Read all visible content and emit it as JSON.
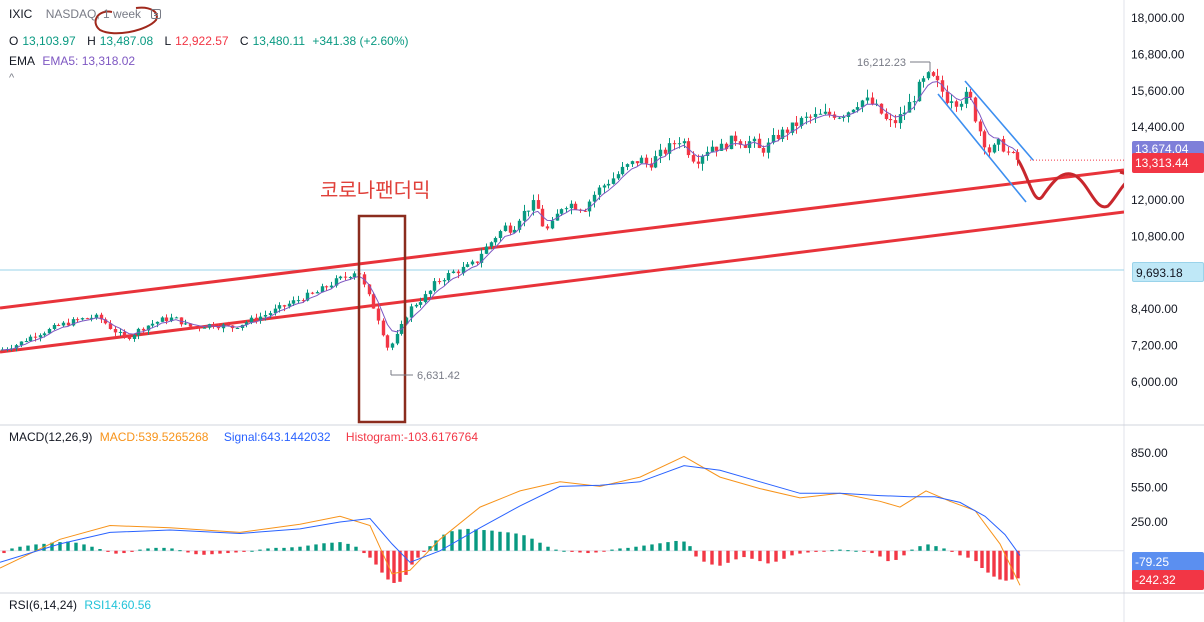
{
  "header": {
    "symbol": "IXIC",
    "exchange_interval": "NASDAQ, 1 week",
    "ohlc": {
      "o_label": "O",
      "o": "13,103.97",
      "h_label": "H",
      "h": "13,487.08",
      "l_label": "L",
      "l": "12,922.57",
      "c_label": "C",
      "c": "13,480.11",
      "change": "+341.38 (+2.60%)"
    },
    "ema_label": "EMA",
    "ema_value": "EMA5: 13,318.02"
  },
  "macd_header": {
    "label": "MACD(12,26,9)",
    "macd": "MACD:539.5265268",
    "signal": "Signal:643.1442032",
    "histogram": "Histogram:-103.6176764"
  },
  "rsi_header": {
    "label": "RSI(6,14,24)",
    "rsi": "RSI14:60.56"
  },
  "price_labels": {
    "ema_box": "13,674.04",
    "last_price": "13,313.44",
    "crosshair_price": "9,693.18",
    "macd_signal_box": "-79.25",
    "macd_hist_box": "-242.32"
  },
  "annotations": {
    "covid_text": "코로나팬더믹",
    "high_label": "16,212.23",
    "low_label": "6,631.42"
  },
  "colors": {
    "up": "#089981",
    "down": "#f23645",
    "ema": "#7e57c2",
    "channel": "#e8333a",
    "wedge": "#3d8ff0",
    "box": "#8b2c1e",
    "forecast": "#c8272d",
    "macd": "#f7931a",
    "signal": "#2962ff"
  },
  "chart_data": [
    {
      "type": "candlestick",
      "title": "IXIC NASDAQ, 1 week",
      "y_axis_ticks": [
        18000,
        16800,
        15600,
        14400,
        13200,
        12000,
        10800,
        9600,
        8400,
        7200,
        6000
      ],
      "y_tick_labels": [
        "18,000.00",
        "16,800.00",
        "15,600.00",
        "14,400.00",
        "",
        "12,000.00",
        "10,800.00",
        "",
        "8,400.00",
        "7,200.00",
        "6,000.00"
      ],
      "ylim": [
        4900,
        18500
      ],
      "path_points": [
        [
          0,
          7050
        ],
        [
          8,
          7150
        ],
        [
          18,
          7250
        ],
        [
          28,
          7450
        ],
        [
          38,
          7600
        ],
        [
          48,
          7700
        ],
        [
          58,
          7850
        ],
        [
          68,
          7950
        ],
        [
          78,
          8050
        ],
        [
          86,
          8100
        ],
        [
          94,
          8150
        ],
        [
          102,
          8050
        ],
        [
          110,
          7800
        ],
        [
          118,
          7600
        ],
        [
          124,
          7450
        ],
        [
          130,
          7520
        ],
        [
          138,
          7700
        ],
        [
          146,
          7850
        ],
        [
          154,
          7950
        ],
        [
          162,
          8050
        ],
        [
          170,
          8100
        ],
        [
          178,
          8050
        ],
        [
          186,
          7850
        ],
        [
          194,
          7800
        ],
        [
          202,
          7850
        ],
        [
          212,
          7900
        ],
        [
          222,
          7850
        ],
        [
          232,
          7800
        ],
        [
          240,
          7900
        ],
        [
          248,
          8000
        ],
        [
          256,
          8100
        ],
        [
          264,
          8200
        ],
        [
          274,
          8350
        ],
        [
          284,
          8500
        ],
        [
          294,
          8650
        ],
        [
          304,
          8800
        ],
        [
          314,
          8900
        ],
        [
          324,
          9100
        ],
        [
          334,
          9300
        ],
        [
          344,
          9450
        ],
        [
          352,
          9600
        ],
        [
          358,
          9700
        ],
        [
          364,
          9150
        ],
        [
          370,
          8700
        ],
        [
          376,
          8300
        ],
        [
          382,
          7700
        ],
        [
          388,
          7100
        ],
        [
          394,
          7350
        ],
        [
          400,
          7700
        ],
        [
          406,
          8200
        ],
        [
          412,
          8500
        ],
        [
          418,
          8650
        ],
        [
          424,
          8800
        ],
        [
          430,
          9000
        ],
        [
          436,
          9300
        ],
        [
          444,
          9450
        ],
        [
          452,
          9600
        ],
        [
          460,
          9700
        ],
        [
          468,
          9800
        ],
        [
          476,
          9950
        ],
        [
          482,
          10300
        ],
        [
          488,
          10500
        ],
        [
          494,
          10750
        ],
        [
          500,
          10950
        ],
        [
          506,
          11150
        ],
        [
          512,
          11000
        ],
        [
          518,
          11400
        ],
        [
          524,
          11600
        ],
        [
          530,
          11800
        ],
        [
          536,
          11900
        ],
        [
          542,
          11200
        ],
        [
          548,
          11000
        ],
        [
          554,
          11300
        ],
        [
          560,
          11750
        ],
        [
          568,
          11900
        ],
        [
          576,
          11800
        ],
        [
          584,
          11700
        ],
        [
          592,
          12100
        ],
        [
          600,
          12400
        ],
        [
          608,
          12600
        ],
        [
          616,
          12800
        ],
        [
          624,
          13050
        ],
        [
          632,
          13200
        ],
        [
          640,
          13350
        ],
        [
          648,
          13150
        ],
        [
          656,
          13400
        ],
        [
          664,
          13600
        ],
        [
          672,
          13800
        ],
        [
          678,
          14000
        ],
        [
          684,
          13900
        ],
        [
          690,
          13500
        ],
        [
          696,
          13300
        ],
        [
          704,
          13600
        ],
        [
          712,
          13800
        ],
        [
          720,
          13700
        ],
        [
          728,
          13900
        ],
        [
          736,
          14050
        ],
        [
          744,
          13850
        ],
        [
          752,
          13950
        ],
        [
          760,
          13600
        ],
        [
          768,
          13800
        ],
        [
          776,
          14100
        ],
        [
          784,
          14250
        ],
        [
          792,
          14400
        ],
        [
          800,
          14600
        ],
        [
          808,
          14700
        ],
        [
          816,
          14750
        ],
        [
          824,
          14800
        ],
        [
          832,
          14850
        ],
        [
          840,
          14800
        ],
        [
          848,
          14950
        ],
        [
          856,
          15200
        ],
        [
          864,
          15300
        ],
        [
          872,
          15150
        ],
        [
          880,
          14900
        ],
        [
          888,
          14500
        ],
        [
          896,
          14600
        ],
        [
          904,
          14900
        ],
        [
          912,
          15300
        ],
        [
          920,
          15800
        ],
        [
          928,
          16050
        ],
        [
          934,
          15950
        ],
        [
          940,
          15700
        ],
        [
          946,
          15350
        ],
        [
          952,
          15400
        ],
        [
          958,
          15200
        ],
        [
          964,
          15450
        ],
        [
          970,
          15300
        ],
        [
          976,
          14600
        ],
        [
          982,
          14100
        ],
        [
          988,
          13600
        ],
        [
          994,
          13700
        ],
        [
          1000,
          13900
        ],
        [
          1006,
          13600
        ],
        [
          1012,
          13450
        ],
        [
          1018,
          13300
        ]
      ],
      "high": 16212.23,
      "low": 6631.42,
      "last": 13313.44,
      "crosshair": 9693.18
    },
    {
      "type": "line",
      "title": "MACD(12,26,9)",
      "y_axis_ticks": [
        850,
        550,
        250
      ],
      "y_tick_labels": [
        "850.00",
        "550.00",
        "250.00"
      ],
      "ylim": [
        -350,
        1000
      ],
      "series": [
        {
          "name": "MACD",
          "points": [
            [
              0,
              -150
            ],
            [
              60,
              100
            ],
            [
              110,
              220
            ],
            [
              170,
              200
            ],
            [
              240,
              160
            ],
            [
              300,
              230
            ],
            [
              340,
              300
            ],
            [
              370,
              220
            ],
            [
              392,
              -200
            ],
            [
              410,
              -170
            ],
            [
              440,
              100
            ],
            [
              480,
              380
            ],
            [
              520,
              520
            ],
            [
              560,
              600
            ],
            [
              600,
              560
            ],
            [
              640,
              640
            ],
            [
              684,
              820
            ],
            [
              720,
              640
            ],
            [
              760,
              540
            ],
            [
              800,
              460
            ],
            [
              840,
              500
            ],
            [
              880,
              430
            ],
            [
              900,
              380
            ],
            [
              926,
              520
            ],
            [
              950,
              430
            ],
            [
              975,
              350
            ],
            [
              1000,
              60
            ],
            [
              1020,
              -300
            ]
          ]
        },
        {
          "name": "Signal",
          "points": [
            [
              0,
              -100
            ],
            [
              60,
              60
            ],
            [
              110,
              160
            ],
            [
              170,
              180
            ],
            [
              240,
              150
            ],
            [
              300,
              190
            ],
            [
              340,
              250
            ],
            [
              370,
              280
            ],
            [
              392,
              60
            ],
            [
              410,
              -100
            ],
            [
              440,
              0
            ],
            [
              480,
              200
            ],
            [
              520,
              390
            ],
            [
              560,
              560
            ],
            [
              600,
              570
            ],
            [
              640,
              600
            ],
            [
              684,
              740
            ],
            [
              720,
              700
            ],
            [
              760,
              600
            ],
            [
              800,
              500
            ],
            [
              840,
              500
            ],
            [
              880,
              480
            ],
            [
              910,
              470
            ],
            [
              935,
              470
            ],
            [
              960,
              420
            ],
            [
              985,
              300
            ],
            [
              1005,
              140
            ],
            [
              1020,
              -40
            ]
          ]
        }
      ],
      "histogram": [
        [
          4,
          -20
        ],
        [
          12,
          20
        ],
        [
          20,
          35
        ],
        [
          28,
          45
        ],
        [
          36,
          55
        ],
        [
          44,
          60
        ],
        [
          52,
          70
        ],
        [
          60,
          75
        ],
        [
          68,
          80
        ],
        [
          76,
          70
        ],
        [
          84,
          55
        ],
        [
          92,
          35
        ],
        [
          100,
          15
        ],
        [
          108,
          -10
        ],
        [
          116,
          -25
        ],
        [
          124,
          -20
        ],
        [
          132,
          -10
        ],
        [
          140,
          10
        ],
        [
          148,
          20
        ],
        [
          156,
          25
        ],
        [
          164,
          25
        ],
        [
          172,
          20
        ],
        [
          180,
          5
        ],
        [
          188,
          -15
        ],
        [
          196,
          -30
        ],
        [
          204,
          -35
        ],
        [
          212,
          -30
        ],
        [
          220,
          -25
        ],
        [
          228,
          -20
        ],
        [
          236,
          -15
        ],
        [
          244,
          -10
        ],
        [
          252,
          0
        ],
        [
          260,
          10
        ],
        [
          268,
          20
        ],
        [
          276,
          25
        ],
        [
          284,
          25
        ],
        [
          292,
          30
        ],
        [
          300,
          35
        ],
        [
          308,
          45
        ],
        [
          316,
          55
        ],
        [
          324,
          65
        ],
        [
          332,
          70
        ],
        [
          340,
          75
        ],
        [
          348,
          60
        ],
        [
          356,
          35
        ],
        [
          364,
          -20
        ],
        [
          370,
          -60
        ],
        [
          376,
          -120
        ],
        [
          382,
          -190
        ],
        [
          388,
          -250
        ],
        [
          394,
          -280
        ],
        [
          400,
          -270
        ],
        [
          406,
          -210
        ],
        [
          412,
          -120
        ],
        [
          418,
          -60
        ],
        [
          424,
          -10
        ],
        [
          430,
          40
        ],
        [
          436,
          90
        ],
        [
          444,
          140
        ],
        [
          452,
          170
        ],
        [
          460,
          185
        ],
        [
          468,
          190
        ],
        [
          476,
          185
        ],
        [
          484,
          180
        ],
        [
          492,
          175
        ],
        [
          500,
          165
        ],
        [
          508,
          160
        ],
        [
          516,
          150
        ],
        [
          524,
          135
        ],
        [
          532,
          105
        ],
        [
          540,
          70
        ],
        [
          548,
          35
        ],
        [
          556,
          10
        ],
        [
          564,
          0
        ],
        [
          572,
          -10
        ],
        [
          580,
          -15
        ],
        [
          588,
          -20
        ],
        [
          596,
          -15
        ],
        [
          604,
          -5
        ],
        [
          612,
          10
        ],
        [
          620,
          20
        ],
        [
          628,
          25
        ],
        [
          636,
          35
        ],
        [
          644,
          45
        ],
        [
          652,
          55
        ],
        [
          660,
          65
        ],
        [
          668,
          75
        ],
        [
          676,
          85
        ],
        [
          684,
          80
        ],
        [
          690,
          40
        ],
        [
          696,
          -50
        ],
        [
          704,
          -95
        ],
        [
          712,
          -120
        ],
        [
          720,
          -130
        ],
        [
          728,
          -105
        ],
        [
          736,
          -75
        ],
        [
          744,
          -55
        ],
        [
          752,
          -70
        ],
        [
          760,
          -90
        ],
        [
          768,
          -110
        ],
        [
          776,
          -95
        ],
        [
          784,
          -70
        ],
        [
          792,
          -40
        ],
        [
          800,
          -25
        ],
        [
          808,
          -15
        ],
        [
          816,
          -10
        ],
        [
          824,
          -5
        ],
        [
          832,
          5
        ],
        [
          840,
          10
        ],
        [
          848,
          5
        ],
        [
          856,
          0
        ],
        [
          864,
          -10
        ],
        [
          872,
          -20
        ],
        [
          880,
          -50
        ],
        [
          888,
          -90
        ],
        [
          896,
          -80
        ],
        [
          904,
          -40
        ],
        [
          912,
          10
        ],
        [
          920,
          40
        ],
        [
          928,
          55
        ],
        [
          936,
          40
        ],
        [
          944,
          20
        ],
        [
          952,
          -10
        ],
        [
          960,
          -40
        ],
        [
          968,
          -60
        ],
        [
          976,
          -90
        ],
        [
          982,
          -150
        ],
        [
          988,
          -190
        ],
        [
          994,
          -225
        ],
        [
          1000,
          -250
        ],
        [
          1006,
          -260
        ],
        [
          1012,
          -250
        ],
        [
          1018,
          -240
        ]
      ]
    }
  ]
}
